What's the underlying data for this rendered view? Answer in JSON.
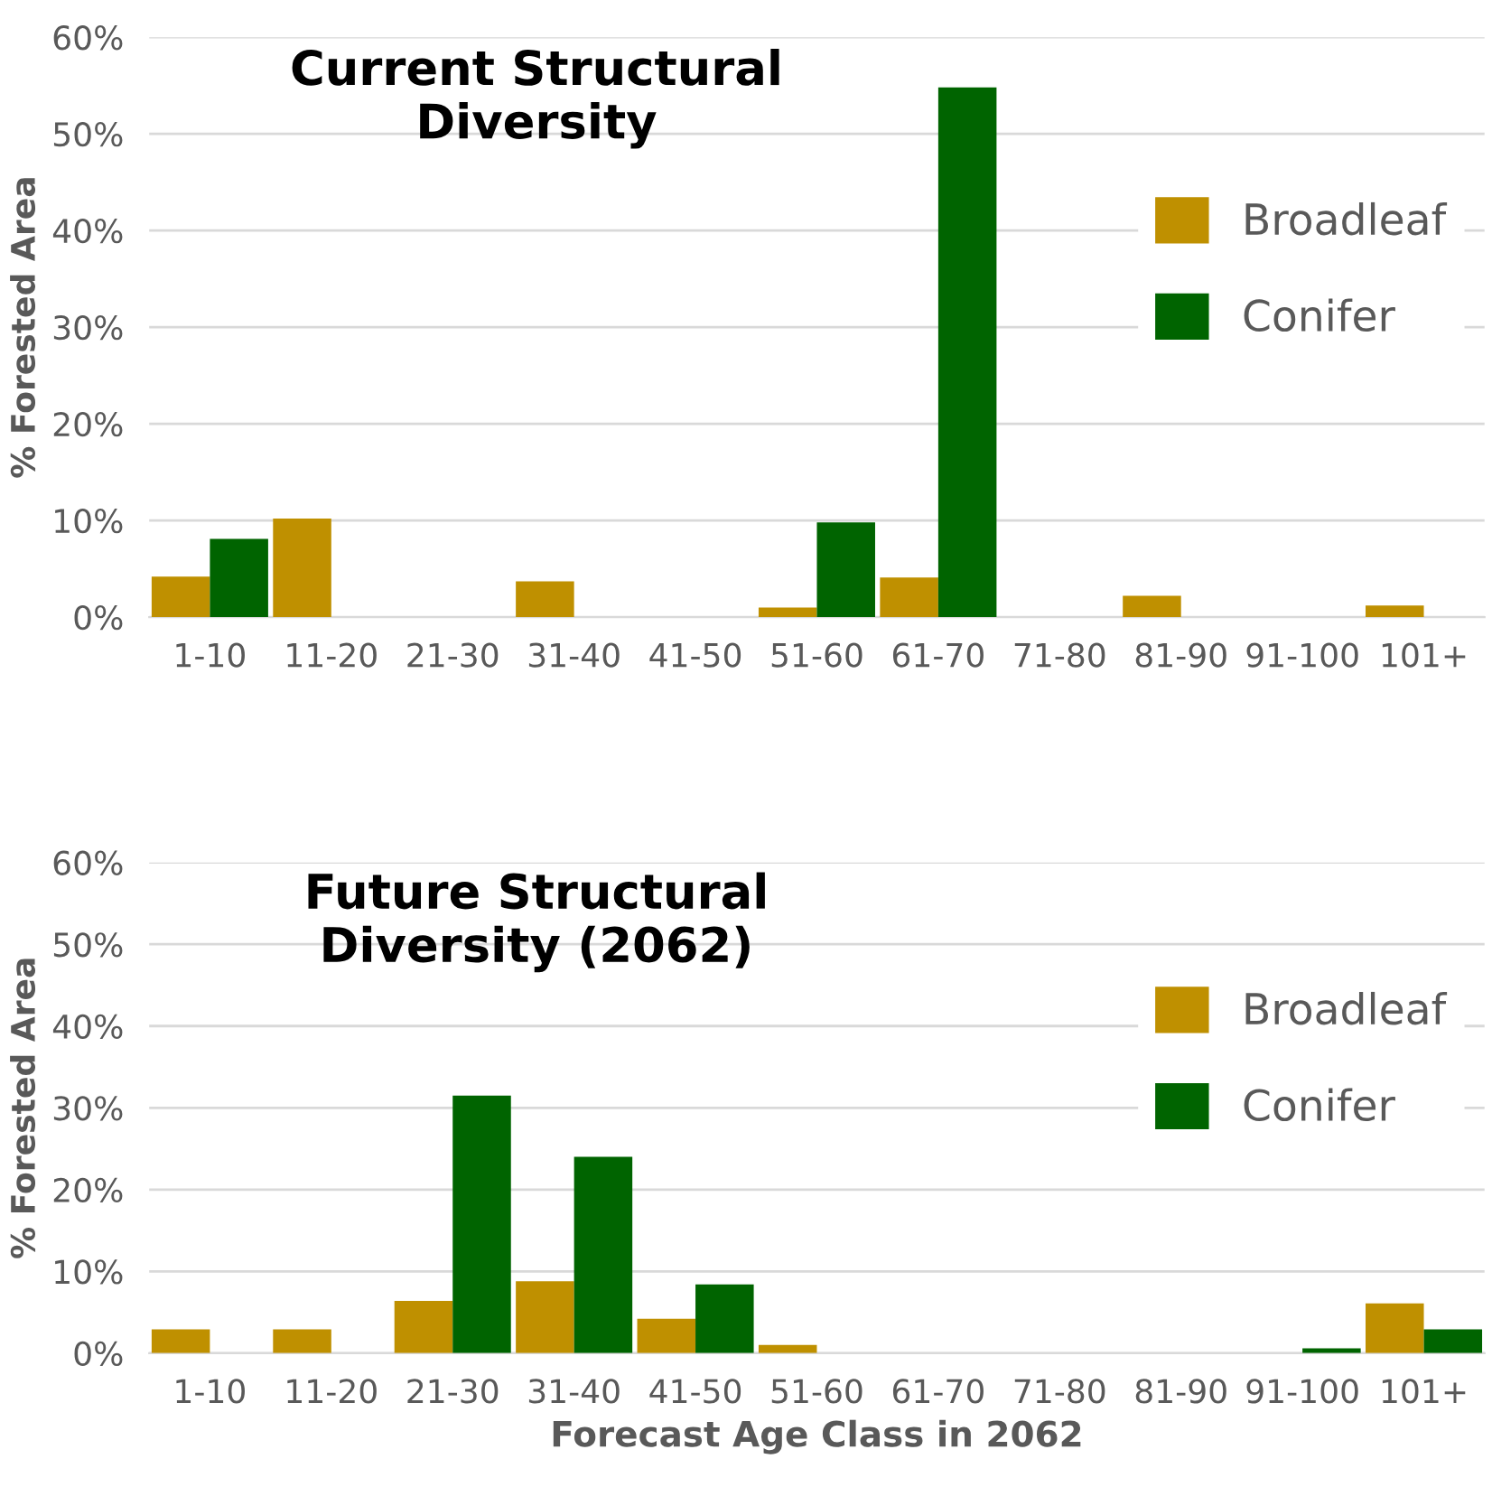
{
  "chart_data": [
    {
      "type": "bar",
      "title": "Current Structural\nDiversity",
      "ylabel": "% Forested Area",
      "categories": [
        "1-10",
        "11-20",
        "21-30",
        "31-40",
        "41-50",
        "51-60",
        "61-70",
        "71-80",
        "81-90",
        "91-100",
        "101+"
      ],
      "series": [
        {
          "name": "Broadleaf",
          "color": "#bf9000",
          "values": [
            4.2,
            10.2,
            0,
            3.7,
            0,
            1.0,
            4.1,
            0,
            2.2,
            0,
            1.2
          ]
        },
        {
          "name": "Conifer",
          "color": "#006400",
          "values": [
            8.1,
            0,
            0,
            0,
            0,
            9.8,
            54.8,
            0,
            0,
            0,
            0
          ]
        }
      ],
      "ylim": [
        0,
        60
      ],
      "yticks": [
        {
          "value": 0,
          "label": "0%"
        },
        {
          "value": 10,
          "label": "10%"
        },
        {
          "value": 20,
          "label": "20%"
        },
        {
          "value": 30,
          "label": "30%"
        },
        {
          "value": 40,
          "label": "40%"
        },
        {
          "value": 50,
          "label": "50%"
        },
        {
          "value": 60,
          "label": "60%"
        }
      ],
      "grid": "y",
      "legend": "right"
    },
    {
      "type": "bar",
      "title": "Future Structural\nDiversity (2062)",
      "xlabel": "Forecast Age Class in 2062",
      "ylabel": "% Forested Area",
      "categories": [
        "1-10",
        "11-20",
        "21-30",
        "31-40",
        "41-50",
        "51-60",
        "61-70",
        "71-80",
        "81-90",
        "91-100",
        "101+"
      ],
      "series": [
        {
          "name": "Broadleaf",
          "color": "#bf9000",
          "values": [
            2.9,
            2.9,
            6.4,
            8.8,
            4.2,
            1.0,
            0,
            0,
            0,
            0,
            6.1
          ]
        },
        {
          "name": "Conifer",
          "color": "#006400",
          "values": [
            0,
            0,
            31.5,
            24.0,
            8.4,
            0,
            0,
            0,
            0,
            0.6,
            2.9
          ]
        }
      ],
      "ylim": [
        0,
        60
      ],
      "yticks": [
        {
          "value": 0,
          "label": "0%"
        },
        {
          "value": 10,
          "label": "10%"
        },
        {
          "value": 20,
          "label": "20%"
        },
        {
          "value": 30,
          "label": "30%"
        },
        {
          "value": 40,
          "label": "40%"
        },
        {
          "value": 50,
          "label": "50%"
        },
        {
          "value": 60,
          "label": "60%"
        }
      ],
      "grid": "y",
      "legend": "right"
    }
  ]
}
